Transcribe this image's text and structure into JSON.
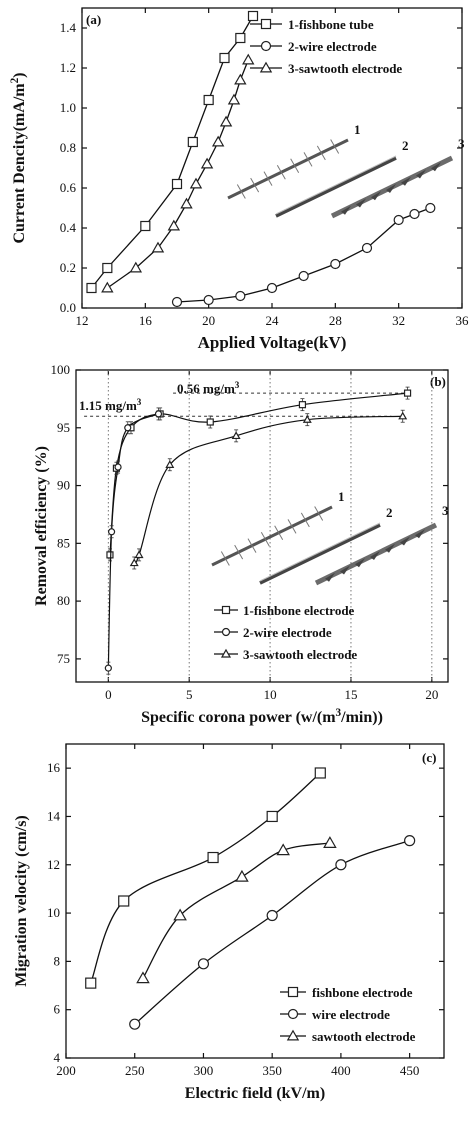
{
  "chart_data": [
    {
      "type": "line",
      "panel_label": "(a)",
      "xlabel": "Applied Voltage(kV)",
      "ylabel": "Current Dencity(mA/m²)",
      "xlim": [
        12,
        36
      ],
      "ylim": [
        0.0,
        1.5
      ],
      "xticks": [
        12,
        16,
        20,
        24,
        28,
        32,
        36
      ],
      "yticks": [
        0.0,
        0.2,
        0.4,
        0.6,
        0.8,
        1.0,
        1.2,
        1.4
      ],
      "ytick_labels": [
        "0.0",
        "0.2",
        "0.4",
        "0.6",
        "0.8",
        "1.0",
        "1.2",
        "1.4"
      ],
      "grid": false,
      "legend_position": "top-right",
      "series": [
        {
          "name": "1-fishbone tube",
          "marker": "square",
          "x": [
            12.6,
            13.6,
            16.0,
            18.0,
            19.0,
            20.0,
            21.0,
            22.0,
            22.8
          ],
          "y": [
            0.1,
            0.2,
            0.41,
            0.62,
            0.83,
            1.04,
            1.25,
            1.35,
            1.46
          ]
        },
        {
          "name": "2-wire electrode",
          "marker": "circle",
          "x": [
            18.0,
            20.0,
            22.0,
            24.0,
            26.0,
            28.0,
            30.0,
            32.0,
            33.0,
            34.0
          ],
          "y": [
            0.03,
            0.04,
            0.06,
            0.1,
            0.16,
            0.22,
            0.3,
            0.44,
            0.47,
            0.5
          ]
        },
        {
          "name": "3-sawtooth electrode",
          "marker": "triangle",
          "x": [
            13.6,
            15.4,
            16.8,
            17.8,
            18.6,
            19.2,
            19.9,
            20.6,
            21.1,
            21.6,
            22.0,
            22.5
          ],
          "y": [
            0.1,
            0.2,
            0.3,
            0.41,
            0.52,
            0.62,
            0.72,
            0.83,
            0.93,
            1.04,
            1.14,
            1.24
          ]
        }
      ],
      "inset_labels": [
        "1",
        "2",
        "3"
      ]
    },
    {
      "type": "line",
      "panel_label": "(b)",
      "xlabel": "Specific corona power (w/(m³/min))",
      "ylabel": "Removal efficiency (%)",
      "xlim": [
        -2,
        21
      ],
      "ylim": [
        73,
        100
      ],
      "xticks": [
        0,
        5,
        10,
        15,
        20
      ],
      "yticks": [
        75,
        80,
        85,
        90,
        95,
        100
      ],
      "grid": false,
      "legend_position": "bottom-right",
      "series": [
        {
          "name": "1-fishbone electrode",
          "marker": "square",
          "x": [
            0.1,
            0.5,
            1.4,
            3.2,
            6.3,
            12.0,
            18.5
          ],
          "y": [
            84.0,
            91.5,
            95.0,
            96.2,
            95.5,
            97.0,
            98.0
          ]
        },
        {
          "name": "2-wire electrode",
          "marker": "circle",
          "x": [
            0.0,
            0.2,
            0.6,
            1.2,
            3.1
          ],
          "y": [
            74.2,
            86.0,
            91.6,
            95.0,
            96.2
          ]
        },
        {
          "name": "3-sawtooth electrode",
          "marker": "triangle",
          "x": [
            1.6,
            1.9,
            3.8,
            7.9,
            12.3,
            18.2
          ],
          "y": [
            83.3,
            84.0,
            91.8,
            94.3,
            95.7,
            96.0
          ]
        }
      ],
      "annotations": [
        "0.56 mg/m³",
        "1.15 mg/m³"
      ],
      "reference_lines_x": [
        0.0,
        5.0,
        10.0,
        15.0,
        20.0
      ],
      "reference_lines_y": [
        96.0,
        98.0
      ],
      "inset_labels": [
        "1",
        "2",
        "3"
      ]
    },
    {
      "type": "line",
      "panel_label": "(c)",
      "xlabel": "Electric field (kV/m)",
      "ylabel": "Migration velocity (cm/s)",
      "xlim": [
        200,
        475
      ],
      "ylim": [
        4,
        17
      ],
      "xticks": [
        200,
        250,
        300,
        350,
        400,
        450
      ],
      "yticks": [
        4,
        6,
        8,
        10,
        12,
        14,
        16
      ],
      "grid": false,
      "legend_position": "bottom-right",
      "series": [
        {
          "name": "fishbone electrode",
          "marker": "square",
          "x": [
            218,
            242,
            307,
            350,
            385
          ],
          "y": [
            7.1,
            10.5,
            12.3,
            14.0,
            15.8
          ]
        },
        {
          "name": "wire electrode",
          "marker": "circle",
          "x": [
            250,
            300,
            350,
            400,
            450
          ],
          "y": [
            5.4,
            7.9,
            9.9,
            12.0,
            13.0
          ]
        },
        {
          "name": "sawtooth electrode",
          "marker": "triangle",
          "x": [
            256,
            283,
            328,
            358,
            392
          ],
          "y": [
            7.3,
            9.9,
            11.5,
            12.6,
            12.9
          ]
        }
      ]
    }
  ]
}
